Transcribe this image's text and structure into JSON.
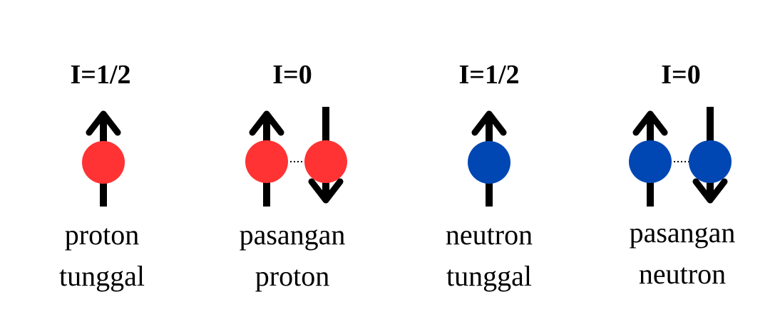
{
  "colors": {
    "proton": "#ff3333",
    "neutron": "#0047b3",
    "arrow": "#000000"
  },
  "panels": [
    {
      "spin_label": "I=1/2",
      "particle": "proton",
      "spins": [
        "up"
      ],
      "caption_line1": "proton",
      "caption_line2": "tunggal"
    },
    {
      "spin_label": "I=0",
      "particle": "proton",
      "spins": [
        "up",
        "down"
      ],
      "caption_line1": "pasangan",
      "caption_line2": "proton"
    },
    {
      "spin_label": "I=1/2",
      "particle": "neutron",
      "spins": [
        "up"
      ],
      "caption_line1": "neutron",
      "caption_line2": "tunggal"
    },
    {
      "spin_label": "I=0",
      "particle": "neutron",
      "spins": [
        "up",
        "down"
      ],
      "caption_line1": "pasangan",
      "caption_line2": "neutron"
    }
  ]
}
